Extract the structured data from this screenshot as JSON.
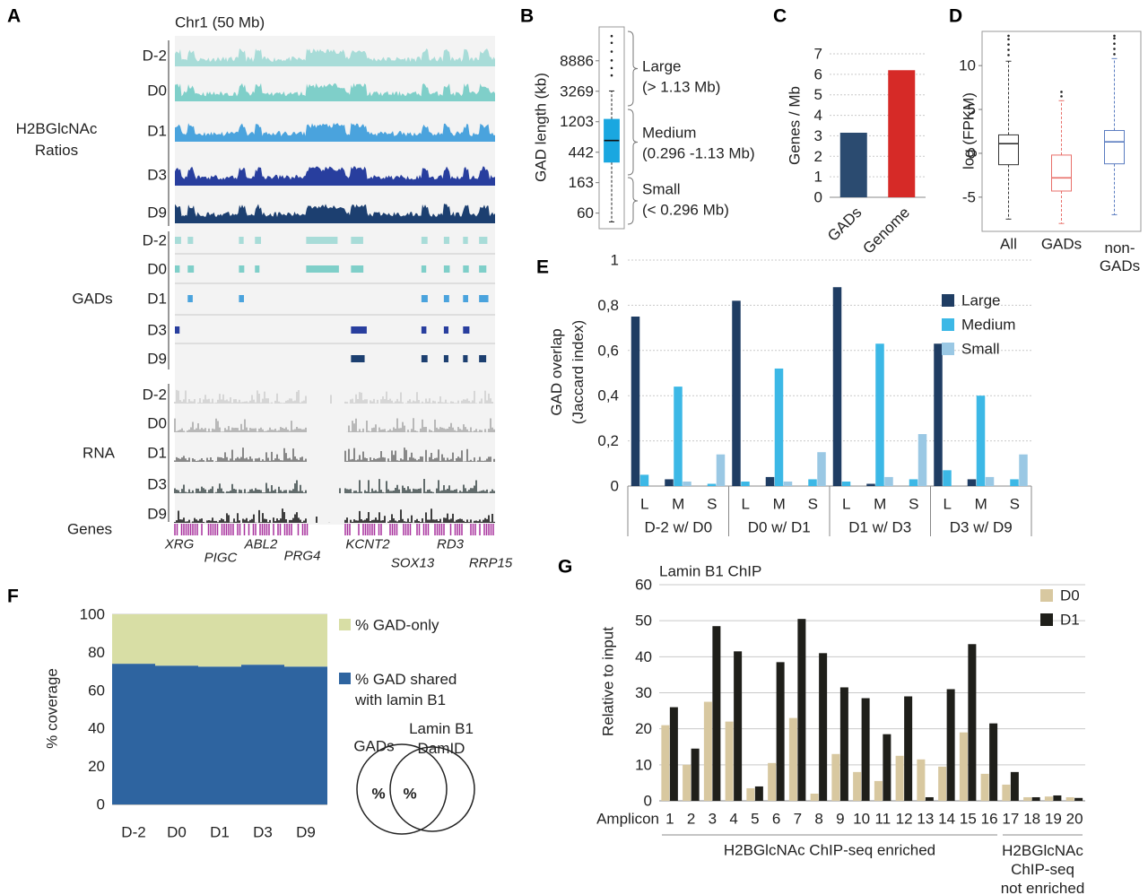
{
  "panel_a": {
    "letter": "A",
    "title": "Chr1 (50 Mb)",
    "groups": [
      {
        "label": "H2BGlcNAc\nRatios",
        "tracks": [
          "D-2",
          "D0",
          "D1",
          "D3",
          "D9"
        ]
      },
      {
        "label": "GADs",
        "tracks": [
          "D-2",
          "D0",
          "D1",
          "D3",
          "D9"
        ]
      },
      {
        "label": "RNA",
        "tracks": [
          "D-2",
          "D0",
          "D1",
          "D3",
          "D9"
        ]
      }
    ],
    "genes_label": "Genes",
    "gene_names": [
      "XRG",
      "PIGC",
      "ABL2",
      "PRG4",
      "KCNT2",
      "SOX13",
      "RD3",
      "RRP15"
    ]
  },
  "chart_data": [
    {
      "type": "box",
      "panel": "B",
      "ylabel": "GAD length (kb)",
      "log": true,
      "ylim": [
        36,
        27000
      ],
      "yticks": [
        60,
        163,
        442,
        1203,
        3269,
        8886
      ],
      "color": "#1aa7e0",
      "boxes": [
        {
          "whislo": 45,
          "q1": 320,
          "med": 650,
          "q3": 1300,
          "whishi": 3300,
          "fliers": [
            5500,
            7000,
            9000,
            12000,
            16000,
            20000
          ]
        }
      ],
      "size_classes": [
        {
          "name": "Large",
          "range": "(> 1.13 Mb)"
        },
        {
          "name": "Medium",
          "range": "(0.296 -1.13 Mb)"
        },
        {
          "name": "Small",
          "range": "(< 0.296 Mb)"
        }
      ]
    },
    {
      "type": "bar",
      "panel": "C",
      "ylabel": "Genes / Mb",
      "categories": [
        "GADs",
        "Genome"
      ],
      "values": [
        3.15,
        6.2
      ],
      "colors": [
        "#2b4b70",
        "#d62a27"
      ],
      "ylim": [
        0,
        7
      ],
      "yticks": [
        0,
        1,
        2,
        3,
        4,
        5,
        6,
        7
      ],
      "grid": true
    },
    {
      "type": "box",
      "panel": "D",
      "ylabel": "log (FPKM)",
      "ylim": [
        -8.9,
        13.9
      ],
      "yticks": [
        -5,
        0,
        5,
        10
      ],
      "categories": [
        "All",
        "GADs",
        "non-\nGADs"
      ],
      "colors": [
        "#333333",
        "#e8706a",
        "#5a7cc0"
      ],
      "boxes": [
        {
          "whislo": -7.5,
          "q1": -1.3,
          "med": 1.1,
          "q3": 2.1,
          "whishi": 10.5,
          "fliers": [
            11.2,
            11.8,
            12.4,
            13.0,
            13.4
          ]
        },
        {
          "whislo": -8,
          "q1": -4.3,
          "med": -2.8,
          "q3": -0.2,
          "whishi": 6,
          "fliers": [
            6.5,
            7
          ]
        },
        {
          "whislo": -7,
          "q1": -1.2,
          "med": 1.3,
          "q3": 2.6,
          "whishi": 10.8,
          "fliers": [
            11.3,
            11.9,
            12.5,
            13.1,
            13.4
          ]
        }
      ]
    },
    {
      "type": "grouped_bar",
      "panel": "E",
      "ylabel": "GAD overlap\n(Jaccard index)",
      "categories": [
        "L",
        "M",
        "S",
        "L",
        "M",
        "S",
        "L",
        "M",
        "S",
        "L",
        "M",
        "S"
      ],
      "groups": [
        "D-2 w/ D0",
        "D0 w/ D1",
        "D1 w/ D3",
        "D3 w/ D9"
      ],
      "series": [
        {
          "name": "Large",
          "color": "#1f3d63",
          "values": [
            0.75,
            0.03,
            0,
            0.82,
            0.04,
            0,
            0.88,
            0.01,
            0,
            0.63,
            0.03,
            0
          ]
        },
        {
          "name": "Medium",
          "color": "#3cb8e6",
          "values": [
            0.05,
            0.44,
            0.01,
            0.02,
            0.52,
            0.03,
            0.02,
            0.63,
            0.03,
            0.07,
            0.4,
            0.03
          ]
        },
        {
          "name": "Small",
          "color": "#9ac8e4",
          "values": [
            0,
            0.02,
            0.14,
            0,
            0.02,
            0.15,
            0,
            0.04,
            0.23,
            0,
            0.04,
            0.14
          ]
        }
      ],
      "ylim": [
        0,
        1
      ],
      "yticks": [
        0,
        {
          "value": 0.2,
          "label": "0,2"
        },
        {
          "value": 0.4,
          "label": "0,4"
        },
        {
          "value": 0.6,
          "label": "0,6"
        },
        {
          "value": 0.8,
          "label": "0,8"
        },
        1
      ],
      "grid": true,
      "legend": "top-right"
    },
    {
      "type": "stacked_bar",
      "panel": "F",
      "ylabel": "% coverage",
      "categories": [
        "D-2",
        "D0",
        "D1",
        "D3",
        "D9"
      ],
      "series": [
        {
          "name": "% GAD shared\nwith lamin B1",
          "color": "#2e64a0",
          "values": [
            74,
            73,
            72.5,
            73.5,
            72.5
          ]
        },
        {
          "name": "% GAD-only",
          "color": "#d8dea5",
          "values": [
            26,
            27,
            27.5,
            26.5,
            27.5
          ]
        }
      ],
      "ylim": [
        0,
        100
      ],
      "yticks": [
        0,
        20,
        40,
        60,
        80,
        100
      ],
      "grid": true,
      "venn": {
        "left": "GADs",
        "right": "Lamin B1\nDamID",
        "left_symbol": "%",
        "overlap_symbol": "%"
      }
    },
    {
      "type": "grouped_bar",
      "panel": "G",
      "title": "Lamin B1 ChIP",
      "ylabel": "Relative to input",
      "xlabel": "Amplicon",
      "categories": [
        "1",
        "2",
        "3",
        "4",
        "5",
        "6",
        "7",
        "8",
        "9",
        "10",
        "11",
        "12",
        "13",
        "14",
        "15",
        "16",
        "17",
        "18",
        "19",
        "20"
      ],
      "category_groups": [
        "H2BGlcNAc ChIP-seq enriched",
        "H2BGlcNAc\nChIP-seq\nnot enriched"
      ],
      "series": [
        {
          "name": "D0",
          "color": "#d8c8a0",
          "values": [
            21,
            10,
            27.5,
            22,
            3.5,
            10.5,
            23,
            2,
            13,
            8,
            5.5,
            12.5,
            11.5,
            9.5,
            19,
            7.5,
            4.5,
            1,
            1.2,
            1
          ]
        },
        {
          "name": "D1",
          "color": "#1f1f1a",
          "values": [
            26,
            14.5,
            48.5,
            41.5,
            4,
            38.5,
            50.5,
            41,
            31.5,
            28.5,
            18.5,
            29,
            1,
            31,
            43.5,
            21.5,
            8,
            1,
            1.5,
            0.8
          ]
        }
      ],
      "ylim": [
        0,
        60
      ],
      "yticks": [
        0,
        10,
        20,
        30,
        40,
        50,
        60
      ],
      "grid": true,
      "legend": "top-right"
    }
  ]
}
